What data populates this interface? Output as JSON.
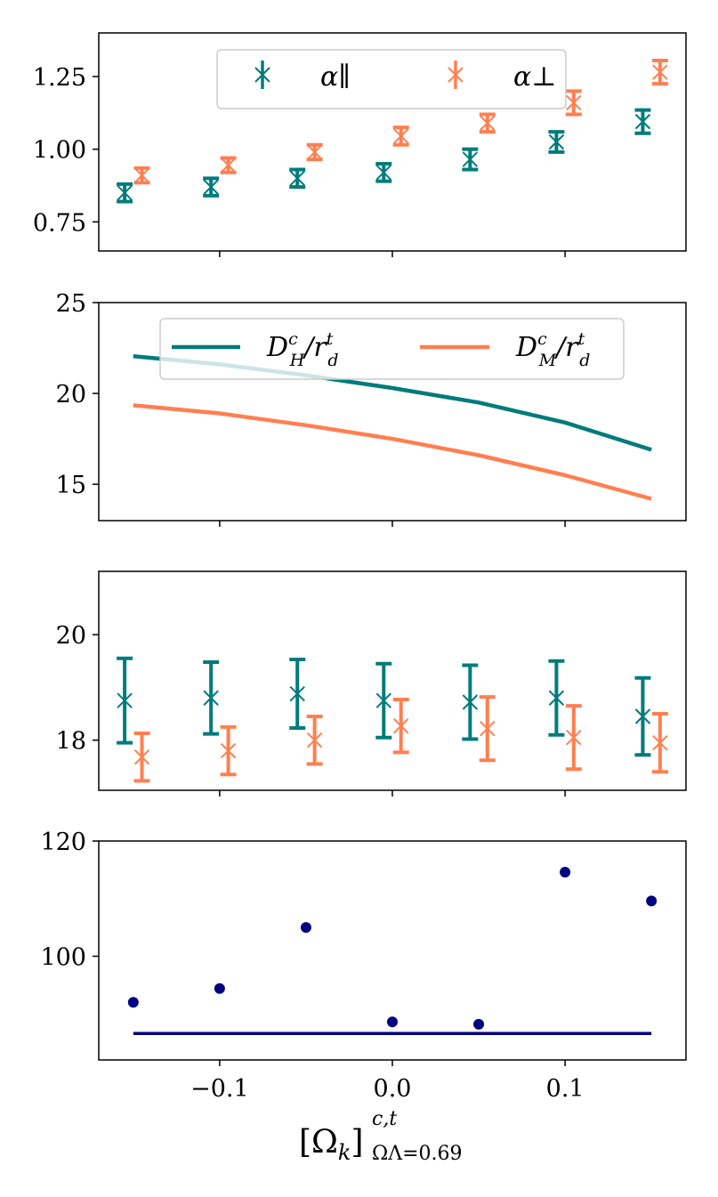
{
  "colors": {
    "teal": "#007b7b",
    "orange": "#ff7f50",
    "navy": "#000080",
    "axis": "#000000"
  },
  "x_axis": {
    "label_main": "[Ω",
    "label_k": "k",
    "label_close": "]",
    "label_sup": "c,t",
    "label_sub": "ΩΛ=0.69",
    "ticks": [
      {
        "value": -0.1,
        "label": "−0.1"
      },
      {
        "value": 0.0,
        "label": "0.0"
      },
      {
        "value": 0.1,
        "label": "0.1"
      }
    ],
    "range": [
      -0.17,
      0.17
    ]
  },
  "chart_data": [
    {
      "type": "errorbar",
      "ylim": [
        0.65,
        1.4
      ],
      "yticks": [
        {
          "value": 0.75,
          "label": "0.75"
        },
        {
          "value": 1.0,
          "label": "1.00"
        },
        {
          "value": 1.25,
          "label": "1.25"
        }
      ],
      "legend": [
        {
          "name": "α_par",
          "label": "α∥",
          "color_key": "teal"
        },
        {
          "name": "α_perp",
          "label": "α⊥",
          "color_key": "orange"
        }
      ],
      "series": [
        {
          "name": "α_par",
          "color_key": "teal",
          "x": [
            -0.155,
            -0.105,
            -0.055,
            -0.005,
            0.045,
            0.095,
            0.145
          ],
          "y": [
            0.85,
            0.87,
            0.9,
            0.92,
            0.965,
            1.025,
            1.095
          ],
          "err": [
            0.03,
            0.03,
            0.03,
            0.03,
            0.035,
            0.035,
            0.04
          ]
        },
        {
          "name": "α_perp",
          "color_key": "orange",
          "x": [
            -0.145,
            -0.095,
            -0.045,
            0.005,
            0.055,
            0.105,
            0.155
          ],
          "y": [
            0.91,
            0.945,
            0.99,
            1.045,
            1.09,
            1.16,
            1.265
          ],
          "err": [
            0.025,
            0.025,
            0.025,
            0.03,
            0.03,
            0.04,
            0.04
          ]
        }
      ]
    },
    {
      "type": "line",
      "ylim": [
        13,
        25
      ],
      "yticks": [
        {
          "value": 15,
          "label": "15"
        },
        {
          "value": 20,
          "label": "20"
        },
        {
          "value": 25,
          "label": "25"
        }
      ],
      "legend": [
        {
          "name": "DH",
          "label_main": "D",
          "label_sup": "c",
          "label_sub": "H",
          "label_div": "/r",
          "label_sup2": "t",
          "label_sub2": "d",
          "color_key": "teal"
        },
        {
          "name": "DM",
          "label_main": "D",
          "label_sup": "c",
          "label_sub": "M",
          "label_div": "/r",
          "label_sup2": "t",
          "label_sub2": "d",
          "color_key": "orange"
        }
      ],
      "series": [
        {
          "name": "DH",
          "color_key": "teal",
          "x": [
            -0.15,
            -0.1,
            -0.05,
            0.0,
            0.05,
            0.1,
            0.15
          ],
          "y": [
            22.05,
            21.6,
            21.0,
            20.3,
            19.5,
            18.4,
            16.9
          ]
        },
        {
          "name": "DM",
          "color_key": "orange",
          "x": [
            -0.15,
            -0.1,
            -0.05,
            0.0,
            0.05,
            0.1,
            0.15
          ],
          "y": [
            19.35,
            18.9,
            18.25,
            17.5,
            16.6,
            15.5,
            14.2
          ]
        }
      ]
    },
    {
      "type": "errorbar",
      "ylim": [
        17.05,
        21.2
      ],
      "yticks": [
        {
          "value": 18,
          "label": "18"
        },
        {
          "value": 20,
          "label": "20"
        }
      ],
      "series": [
        {
          "name": "teal",
          "color_key": "teal",
          "x": [
            -0.155,
            -0.105,
            -0.055,
            -0.005,
            0.045,
            0.095,
            0.145
          ],
          "y": [
            18.75,
            18.8,
            18.88,
            18.75,
            18.72,
            18.8,
            18.45
          ],
          "err": [
            0.8,
            0.68,
            0.65,
            0.7,
            0.7,
            0.7,
            0.73
          ]
        },
        {
          "name": "orange",
          "color_key": "orange",
          "x": [
            -0.145,
            -0.095,
            -0.045,
            0.005,
            0.055,
            0.105,
            0.155
          ],
          "y": [
            17.68,
            17.8,
            18.0,
            18.27,
            18.22,
            18.05,
            17.95
          ]
        },
        {
          "name": "orange-err",
          "color_key": "orange",
          "x": [
            -0.145,
            -0.095,
            -0.045,
            0.005,
            0.055,
            0.105,
            0.155
          ],
          "y": [
            17.68,
            17.8,
            18.0,
            18.27,
            18.22,
            18.05,
            17.95
          ],
          "err": [
            0.45,
            0.45,
            0.45,
            0.5,
            0.6,
            0.6,
            0.55
          ]
        }
      ]
    },
    {
      "type": "scatter",
      "ylim": [
        82,
        120
      ],
      "yticks": [
        {
          "value": 100,
          "label": "100"
        },
        {
          "value": 120,
          "label": "120"
        }
      ],
      "series": [
        {
          "name": "points",
          "color_key": "navy",
          "x": [
            -0.15,
            -0.1,
            -0.05,
            0.0,
            0.05,
            0.1,
            0.15
          ],
          "y": [
            92.0,
            94.4,
            105.0,
            88.6,
            88.2,
            114.6,
            109.6
          ]
        }
      ],
      "hline": {
        "y": 86.6,
        "x0": -0.15,
        "x1": 0.15,
        "color_key": "navy"
      }
    }
  ]
}
